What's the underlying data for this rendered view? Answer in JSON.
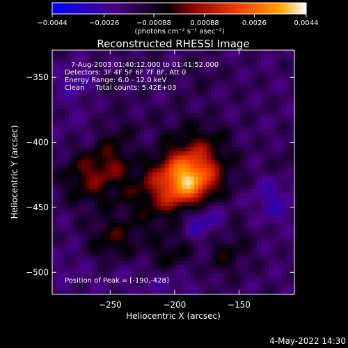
{
  "chart_data": {
    "type": "heatmap",
    "title": "Reconstructed RHESSI Image",
    "xlabel": "Heliocentric X (arcsec)",
    "ylabel": "Heliocentric Y (arcsec)",
    "xlim": [
      -295,
      -107
    ],
    "ylim": [
      -517,
      -329
    ],
    "xticks": [
      {
        "value": -250,
        "label": "−250"
      },
      {
        "value": -200,
        "label": "−200"
      },
      {
        "value": -150,
        "label": "−150"
      }
    ],
    "yticks": [
      {
        "value": -350,
        "label": "−350"
      },
      {
        "value": -400,
        "label": "−400"
      },
      {
        "value": -450,
        "label": "−450"
      },
      {
        "value": -500,
        "label": "−500"
      }
    ],
    "colorbar": {
      "min": -0.0044,
      "max": 0.0044,
      "ticks": [
        {
          "value": -0.0044,
          "label": "−0.0044"
        },
        {
          "value": -0.0026,
          "label": "−0.0026"
        },
        {
          "value": -0.00088,
          "label": "−0.00088"
        },
        {
          "value": 0.00088,
          "label": "0.00088"
        },
        {
          "value": 0.0026,
          "label": "0.0026"
        },
        {
          "value": 0.0044,
          "label": "0.0044"
        }
      ],
      "unit_label": "(photons cm⁻² s⁻¹ asec⁻²)",
      "colors": [
        "#0000ff",
        "#4b0082",
        "#000000",
        "#8b0000",
        "#ff4500",
        "#ffa500",
        "#ffffff"
      ]
    },
    "peak": {
      "x": -190,
      "y": -428
    },
    "annotations": [
      "7-Aug-2003 01:40:12.000 to 01:41:52.000",
      "Detectors: 3F 4F 5F 6F 7F 8F, Att 0",
      "Energy Range: 6.0 - 12.0 keV",
      "Clean     Total counts: 5.42E+03",
      "Position of Peak = [-190,-428]"
    ]
  },
  "footer": {
    "timestamp": "4-May-2022 14:30"
  }
}
